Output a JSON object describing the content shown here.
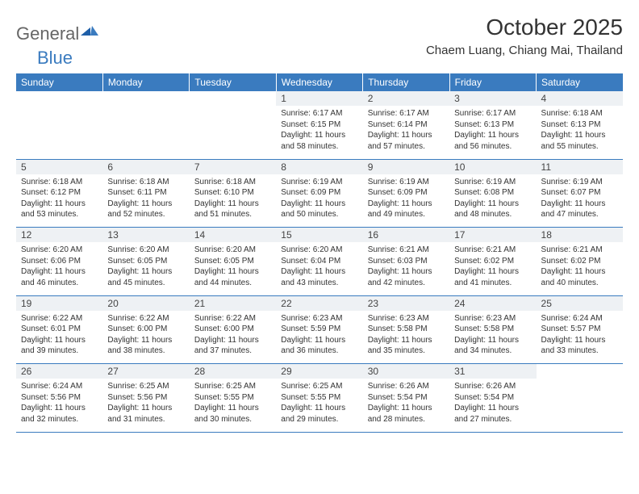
{
  "logo": {
    "text1": "General",
    "text2": "Blue"
  },
  "title": "October 2025",
  "location": "Chaem Luang, Chiang Mai, Thailand",
  "colors": {
    "header_bg": "#3a7bbf",
    "header_text": "#ffffff",
    "daynum_bg": "#eef1f4",
    "border": "#3a7bbf",
    "body_text": "#333333"
  },
  "weekdays": [
    "Sunday",
    "Monday",
    "Tuesday",
    "Wednesday",
    "Thursday",
    "Friday",
    "Saturday"
  ],
  "weeks": [
    [
      null,
      null,
      null,
      {
        "n": "1",
        "sr": "6:17 AM",
        "ss": "6:15 PM",
        "dh": "11",
        "dm": "58"
      },
      {
        "n": "2",
        "sr": "6:17 AM",
        "ss": "6:14 PM",
        "dh": "11",
        "dm": "57"
      },
      {
        "n": "3",
        "sr": "6:17 AM",
        "ss": "6:13 PM",
        "dh": "11",
        "dm": "56"
      },
      {
        "n": "4",
        "sr": "6:18 AM",
        "ss": "6:13 PM",
        "dh": "11",
        "dm": "55"
      }
    ],
    [
      {
        "n": "5",
        "sr": "6:18 AM",
        "ss": "6:12 PM",
        "dh": "11",
        "dm": "53"
      },
      {
        "n": "6",
        "sr": "6:18 AM",
        "ss": "6:11 PM",
        "dh": "11",
        "dm": "52"
      },
      {
        "n": "7",
        "sr": "6:18 AM",
        "ss": "6:10 PM",
        "dh": "11",
        "dm": "51"
      },
      {
        "n": "8",
        "sr": "6:19 AM",
        "ss": "6:09 PM",
        "dh": "11",
        "dm": "50"
      },
      {
        "n": "9",
        "sr": "6:19 AM",
        "ss": "6:09 PM",
        "dh": "11",
        "dm": "49"
      },
      {
        "n": "10",
        "sr": "6:19 AM",
        "ss": "6:08 PM",
        "dh": "11",
        "dm": "48"
      },
      {
        "n": "11",
        "sr": "6:19 AM",
        "ss": "6:07 PM",
        "dh": "11",
        "dm": "47"
      }
    ],
    [
      {
        "n": "12",
        "sr": "6:20 AM",
        "ss": "6:06 PM",
        "dh": "11",
        "dm": "46"
      },
      {
        "n": "13",
        "sr": "6:20 AM",
        "ss": "6:05 PM",
        "dh": "11",
        "dm": "45"
      },
      {
        "n": "14",
        "sr": "6:20 AM",
        "ss": "6:05 PM",
        "dh": "11",
        "dm": "44"
      },
      {
        "n": "15",
        "sr": "6:20 AM",
        "ss": "6:04 PM",
        "dh": "11",
        "dm": "43"
      },
      {
        "n": "16",
        "sr": "6:21 AM",
        "ss": "6:03 PM",
        "dh": "11",
        "dm": "42"
      },
      {
        "n": "17",
        "sr": "6:21 AM",
        "ss": "6:02 PM",
        "dh": "11",
        "dm": "41"
      },
      {
        "n": "18",
        "sr": "6:21 AM",
        "ss": "6:02 PM",
        "dh": "11",
        "dm": "40"
      }
    ],
    [
      {
        "n": "19",
        "sr": "6:22 AM",
        "ss": "6:01 PM",
        "dh": "11",
        "dm": "39"
      },
      {
        "n": "20",
        "sr": "6:22 AM",
        "ss": "6:00 PM",
        "dh": "11",
        "dm": "38"
      },
      {
        "n": "21",
        "sr": "6:22 AM",
        "ss": "6:00 PM",
        "dh": "11",
        "dm": "37"
      },
      {
        "n": "22",
        "sr": "6:23 AM",
        "ss": "5:59 PM",
        "dh": "11",
        "dm": "36"
      },
      {
        "n": "23",
        "sr": "6:23 AM",
        "ss": "5:58 PM",
        "dh": "11",
        "dm": "35"
      },
      {
        "n": "24",
        "sr": "6:23 AM",
        "ss": "5:58 PM",
        "dh": "11",
        "dm": "34"
      },
      {
        "n": "25",
        "sr": "6:24 AM",
        "ss": "5:57 PM",
        "dh": "11",
        "dm": "33"
      }
    ],
    [
      {
        "n": "26",
        "sr": "6:24 AM",
        "ss": "5:56 PM",
        "dh": "11",
        "dm": "32"
      },
      {
        "n": "27",
        "sr": "6:25 AM",
        "ss": "5:56 PM",
        "dh": "11",
        "dm": "31"
      },
      {
        "n": "28",
        "sr": "6:25 AM",
        "ss": "5:55 PM",
        "dh": "11",
        "dm": "30"
      },
      {
        "n": "29",
        "sr": "6:25 AM",
        "ss": "5:55 PM",
        "dh": "11",
        "dm": "29"
      },
      {
        "n": "30",
        "sr": "6:26 AM",
        "ss": "5:54 PM",
        "dh": "11",
        "dm": "28"
      },
      {
        "n": "31",
        "sr": "6:26 AM",
        "ss": "5:54 PM",
        "dh": "11",
        "dm": "27"
      },
      null
    ]
  ]
}
